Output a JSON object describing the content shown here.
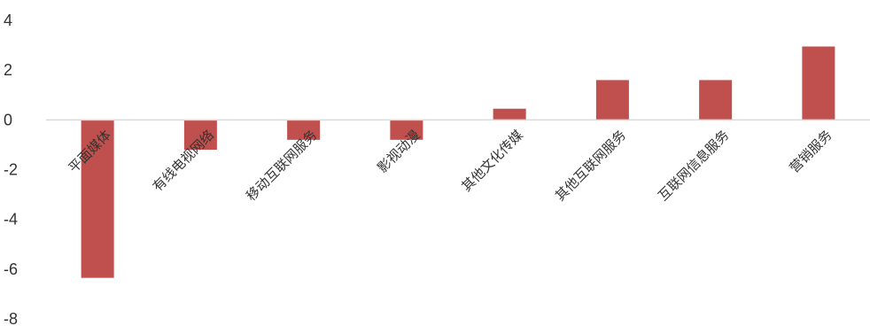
{
  "chart_data": {
    "type": "bar",
    "title": "",
    "xlabel": "",
    "ylabel": "",
    "ylim": [
      -8,
      4
    ],
    "yticks": [
      4,
      2,
      0,
      -2,
      -4,
      -6,
      -8
    ],
    "grid": false,
    "legend": "none",
    "bar_color": "#c0504d",
    "axis_color": "#d9d9d9",
    "categories": [
      "平面媒体",
      "有线电视网络",
      "移动互联网服务",
      "影视动漫",
      "其他文化传媒",
      "其他互联网服务",
      "互联网信息服务",
      "营销服务"
    ],
    "values": [
      -6.35,
      -1.2,
      -0.8,
      -0.8,
      0.45,
      1.6,
      1.6,
      2.95
    ]
  }
}
